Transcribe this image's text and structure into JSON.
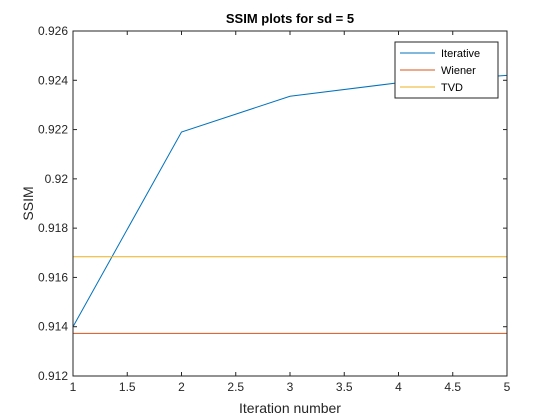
{
  "chart_data": {
    "type": "line",
    "title": "SSIM plots for sd = 5",
    "xlabel": "Iteration number",
    "ylabel": "SSIM",
    "xlim": [
      1,
      5
    ],
    "ylim": [
      0.912,
      0.926
    ],
    "x_ticks": [
      "1",
      "1.5",
      "2",
      "2.5",
      "3",
      "3.5",
      "4",
      "4.5",
      "5"
    ],
    "y_ticks": [
      "0.912",
      "0.914",
      "0.916",
      "0.918",
      "0.92",
      "0.922",
      "0.924",
      "0.926"
    ],
    "x": [
      1,
      2,
      3,
      4,
      5
    ],
    "series": [
      {
        "name": "Iterative",
        "color": "#0072BD",
        "values": [
          0.914,
          0.9219,
          0.92335,
          0.9239,
          0.9242
        ]
      },
      {
        "name": "Wiener",
        "color": "#D95319",
        "values": [
          0.91373,
          0.91373,
          0.91373,
          0.91373,
          0.91373
        ]
      },
      {
        "name": "TVD",
        "color": "#EDB120",
        "values": [
          0.91684,
          0.91684,
          0.91684,
          0.91684,
          0.91684
        ]
      }
    ],
    "grid": false,
    "legend_position": "top-right"
  }
}
